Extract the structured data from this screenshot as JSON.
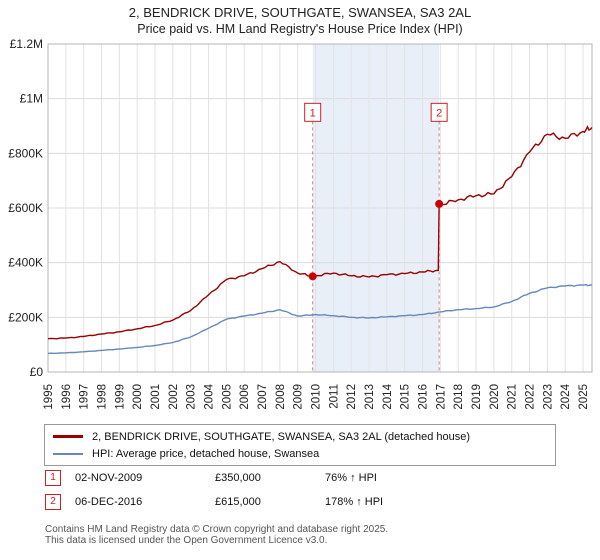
{
  "title": "2, BENDRICK DRIVE, SOUTHGATE, SWANSEA, SA3 2AL",
  "subtitle": "Price paid vs. HM Land Registry's House Price Index (HPI)",
  "chart_data": {
    "type": "line",
    "x_range": [
      1995,
      2025.5
    ],
    "ylim": [
      0,
      1200000
    ],
    "grid": true,
    "legend_position": "bottom",
    "y_ticks": [
      {
        "v": 0,
        "label": "£0"
      },
      {
        "v": 200000,
        "label": "£200K"
      },
      {
        "v": 400000,
        "label": "£400K"
      },
      {
        "v": 600000,
        "label": "£600K"
      },
      {
        "v": 800000,
        "label": "£800K"
      },
      {
        "v": 1000000,
        "label": "£1M"
      },
      {
        "v": 1200000,
        "label": "£1.2M"
      }
    ],
    "x_ticks": [
      1995,
      1996,
      1997,
      1998,
      1999,
      2000,
      2001,
      2002,
      2003,
      2004,
      2005,
      2006,
      2007,
      2008,
      2009,
      2010,
      2011,
      2012,
      2013,
      2014,
      2015,
      2016,
      2017,
      2018,
      2019,
      2020,
      2021,
      2022,
      2023,
      2024,
      2025
    ],
    "series": [
      {
        "name": "2, BENDRICK DRIVE, SOUTHGATE, SWANSEA, SA3 2AL (detached house)",
        "color": "#990000",
        "noise": 0.012,
        "x": [
          1995,
          1996,
          1997,
          1998,
          1999,
          2000,
          2001,
          2002,
          2003,
          2004,
          2005,
          2006,
          2007,
          2008,
          2009,
          2009.84,
          2010,
          2011,
          2012,
          2013,
          2014,
          2015,
          2016,
          2016.88,
          2016.93,
          2017,
          2018,
          2019,
          2020,
          2021,
          2022,
          2023,
          2024,
          2025,
          2025.5
        ],
        "values": [
          122000,
          124000,
          130000,
          139000,
          147000,
          158000,
          170000,
          190000,
          225000,
          282000,
          338000,
          352000,
          378000,
          404000,
          362000,
          350000,
          352000,
          362000,
          352000,
          348000,
          356000,
          360000,
          366000,
          372000,
          615000,
          612000,
          630000,
          645000,
          652000,
          715000,
          805000,
          870000,
          855000,
          880000,
          895000
        ]
      },
      {
        "name": "HPI: Average price, detached house, Swansea",
        "color": "#6688bb",
        "noise": 0.008,
        "x": [
          1995,
          1996,
          1997,
          1998,
          1999,
          2000,
          2001,
          2002,
          2003,
          2004,
          2005,
          2006,
          2007,
          2008,
          2009,
          2010,
          2011,
          2012,
          2013,
          2014,
          2015,
          2016,
          2017,
          2018,
          2019,
          2020,
          2021,
          2022,
          2023,
          2024,
          2025,
          2025.5
        ],
        "values": [
          68000,
          70000,
          74000,
          79000,
          84000,
          90000,
          97000,
          108000,
          128000,
          160000,
          193000,
          205000,
          215000,
          228000,
          205000,
          210000,
          206000,
          200000,
          198000,
          202000,
          206000,
          210000,
          220000,
          228000,
          232000,
          238000,
          258000,
          288000,
          308000,
          315000,
          318000,
          318000
        ]
      }
    ],
    "sales": [
      {
        "label": "1",
        "date": "02-NOV-2009",
        "x": 2009.84,
        "price": 350000,
        "price_label": "£350,000",
        "hpi_label": "76% ↑ HPI"
      },
      {
        "label": "2",
        "date": "06-DEC-2016",
        "x": 2016.93,
        "price": 615000,
        "price_label": "£615,000",
        "hpi_label": "178% ↑ HPI"
      }
    ],
    "band": [
      2009.84,
      2016.93
    ],
    "colors": {
      "band": "#dbe5f3",
      "grid": "#dcdcdc",
      "border": "#b5b5b5",
      "sale_line": "#dd7777",
      "sale_marker": "#cc2222",
      "dot": "#cc0000"
    }
  },
  "footer": {
    "line1": "Contains HM Land Registry data © Crown copyright and database right 2025.",
    "line2": "This data is licensed under the Open Government Licence v3.0."
  }
}
